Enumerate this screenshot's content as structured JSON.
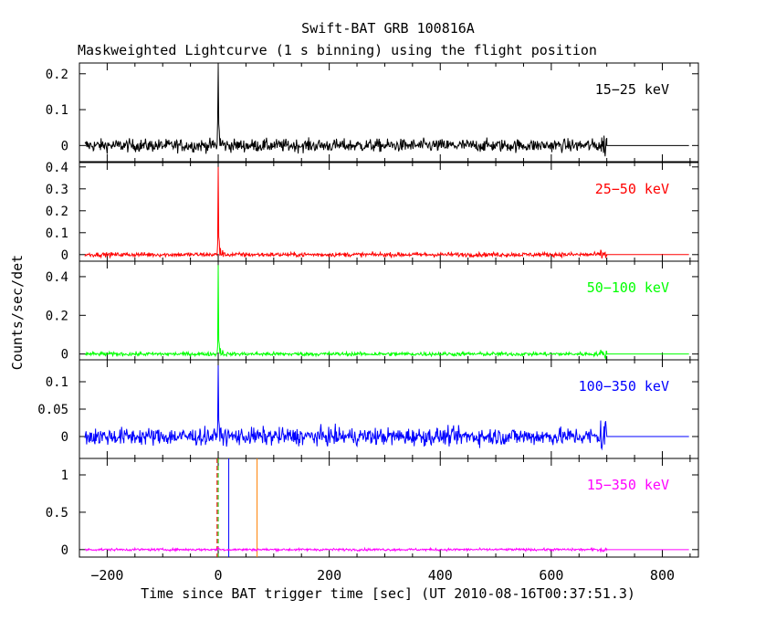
{
  "chart_data": {
    "type": "line",
    "title": "Swift-BAT GRB 100816A",
    "subtitle": "Maskweighted Lightcurve (1 s binning) using the flight position",
    "ylabel": "Counts/sec/det",
    "xlabel": "Time since BAT trigger time [sec] (UT 2010-08-16T00:37:51.3)",
    "xlim": [
      -250,
      865
    ],
    "xticks": [
      -200,
      0,
      200,
      400,
      600,
      800
    ],
    "xtick_labels": [
      "−200",
      "0",
      "200",
      "400",
      "600",
      "800"
    ],
    "data_end": 700,
    "panels": [
      {
        "name": "15−25 keV",
        "color": "#000000",
        "ylim": [
          -0.045,
          0.23
        ],
        "yticks": [
          0,
          0.1,
          0.2
        ],
        "ytick_labels": [
          "0",
          "0.1",
          "0.2"
        ],
        "noise": 0.009,
        "peak": [
          [
            -1,
            0.07
          ],
          [
            0,
            0.22
          ],
          [
            1,
            0.06
          ],
          [
            2,
            0.04
          ],
          [
            4,
            0.02
          ],
          [
            8,
            0.015
          ]
        ],
        "tail_noise": 0.018
      },
      {
        "name": "25−50 keV",
        "color": "#ff0000",
        "ylim": [
          -0.03,
          0.42
        ],
        "yticks": [
          0,
          0.1,
          0.2,
          0.3,
          0.4
        ],
        "ytick_labels": [
          "0",
          "0.1",
          "0.2",
          "0.3",
          "0.4"
        ],
        "noise": 0.005,
        "peak": [
          [
            -1,
            0.05
          ],
          [
            0,
            0.4
          ],
          [
            1,
            0.08
          ],
          [
            2,
            0.06
          ],
          [
            4,
            0.03
          ],
          [
            8,
            0.02
          ]
        ],
        "tail_noise": 0.012
      },
      {
        "name": "50−100 keV",
        "color": "#00ff00",
        "ylim": [
          -0.03,
          0.48
        ],
        "yticks": [
          0,
          0.2,
          0.4
        ],
        "ytick_labels": [
          "0",
          "0.2",
          "0.4"
        ],
        "noise": 0.005,
        "peak": [
          [
            -1,
            0.04
          ],
          [
            0,
            0.46
          ],
          [
            1,
            0.07
          ],
          [
            2,
            0.05
          ],
          [
            4,
            0.03
          ],
          [
            8,
            0.02
          ]
        ],
        "tail_noise": 0.012
      },
      {
        "name": "100−350 keV",
        "color": "#0000ff",
        "ylim": [
          -0.04,
          0.14
        ],
        "yticks": [
          0,
          0.05,
          0.1
        ],
        "ytick_labels": [
          "0",
          "0.05",
          "0.1"
        ],
        "noise": 0.008,
        "peak": [
          [
            -1,
            0.02
          ],
          [
            0,
            0.13
          ],
          [
            1,
            0.03
          ],
          [
            2,
            0.02
          ],
          [
            4,
            0.015
          ]
        ],
        "tail_noise": 0.022
      },
      {
        "name": "15−350 keV",
        "color": "#ff00ff",
        "ylim": [
          -0.1,
          1.22
        ],
        "yticks": [
          0,
          0.5,
          1
        ],
        "ytick_labels": [
          "0",
          "0.5",
          "1"
        ],
        "noise": 0.008,
        "peak": [
          [
            0,
            0.03
          ],
          [
            1,
            0.02
          ]
        ],
        "tail_noise": 0.02,
        "markers": [
          {
            "x": -2,
            "color": "#ff0000",
            "dash": true
          },
          {
            "x": 0,
            "color": "#00cc00",
            "dash": true
          },
          {
            "x": 19,
            "color": "#0000ff",
            "dash": false
          },
          {
            "x": 70,
            "color": "#ff8000",
            "dash": false
          }
        ]
      }
    ]
  }
}
